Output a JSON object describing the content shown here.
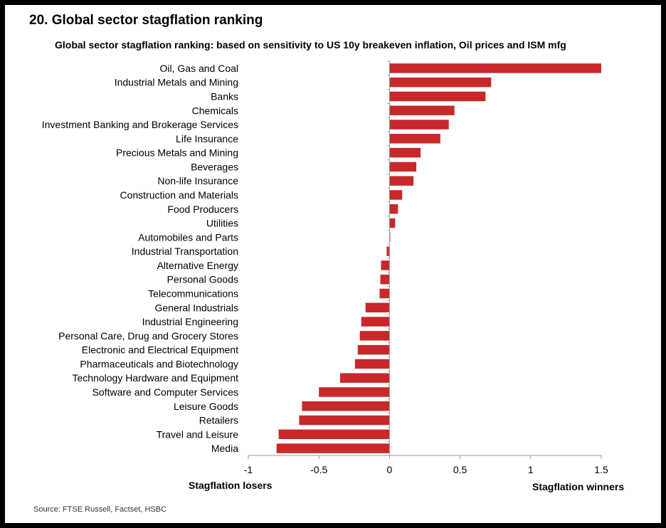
{
  "figure_title": "20. Global sector stagflation ranking",
  "source": "Source: FTSE Russell, Factset, HSBC",
  "bar_color": "#c8282a",
  "chart_data": {
    "type": "bar",
    "orientation": "horizontal",
    "title": "Global sector stagflation ranking: based on sensitivity to US 10y breakeven inflation, Oil prices and ISM mfg",
    "xlabel_left": "Stagflation losers",
    "xlabel_right": "Stagflation winners",
    "xlim": [
      -1,
      1.5
    ],
    "xticks": [
      -1,
      -0.5,
      0,
      0.5,
      1,
      1.5
    ],
    "xtick_labels": [
      "-1",
      "-0.5",
      "0",
      "0.5",
      "1",
      "1.5"
    ],
    "categories": [
      "Oil, Gas and Coal",
      "Industrial Metals and Mining",
      "Banks",
      "Chemicals",
      "Investment Banking and Brokerage Services",
      "Life Insurance",
      "Precious Metals and Mining",
      "Beverages",
      "Non-life Insurance",
      "Construction and Materials",
      "Food Producers",
      "Utilities",
      "Automobiles and Parts",
      "Industrial Transportation",
      "Alternative Energy",
      "Personal Goods",
      "Telecommunications",
      "General Industrials",
      "Industrial Engineering",
      "Personal Care, Drug and Grocery Stores",
      "Electronic and Electrical Equipment",
      "Pharmaceuticals and Biotechnology",
      "Technology Hardware and Equipment",
      "Software and Computer Services",
      "Leisure Goods",
      "Retailers",
      "Travel and Leisure",
      "Media"
    ],
    "values": [
      1.5,
      0.72,
      0.68,
      0.46,
      0.42,
      0.36,
      0.22,
      0.19,
      0.17,
      0.09,
      0.06,
      0.04,
      0.005,
      -0.02,
      -0.06,
      -0.065,
      -0.07,
      -0.17,
      -0.2,
      -0.21,
      -0.225,
      -0.245,
      -0.35,
      -0.5,
      -0.62,
      -0.64,
      -0.785,
      -0.8
    ]
  }
}
